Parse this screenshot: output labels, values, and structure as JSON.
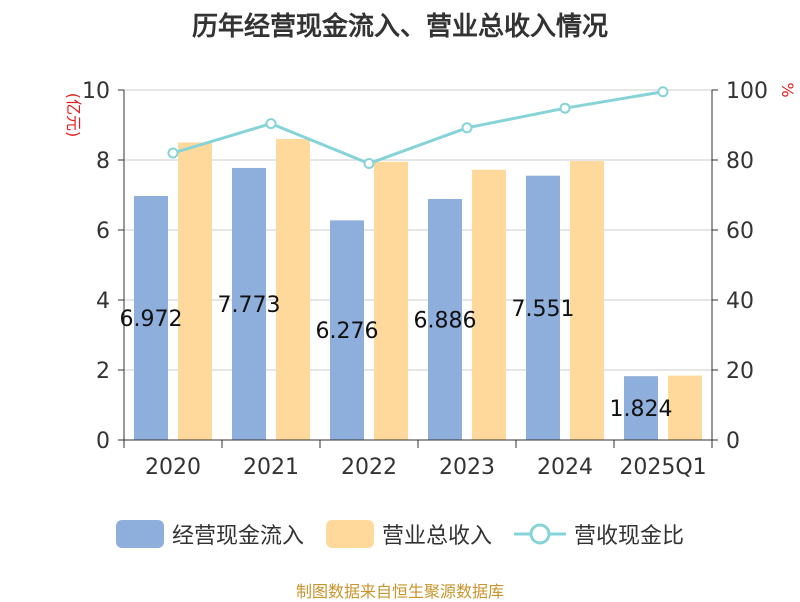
{
  "chart_data": {
    "type": "bar",
    "title": "历年经营现金流入、营业总收入情况",
    "categories": [
      "2020",
      "2021",
      "2022",
      "2023",
      "2024",
      "2025Q1"
    ],
    "series": [
      {
        "name": "经营现金流入",
        "type": "bar",
        "axis": "left",
        "color": "#8eaedb",
        "values": [
          6.972,
          7.773,
          6.276,
          6.886,
          7.551,
          1.824
        ]
      },
      {
        "name": "营业总收入",
        "type": "bar",
        "axis": "left",
        "color": "#ffd99b",
        "values": [
          8.5,
          8.6,
          7.95,
          7.72,
          7.97,
          1.84
        ]
      },
      {
        "name": "营收现金比",
        "type": "line",
        "axis": "right",
        "color": "#86d3d8",
        "values": [
          82.0,
          90.4,
          79.0,
          89.2,
          94.8,
          99.5
        ]
      }
    ],
    "data_labels": [
      "6.972",
      "7.773",
      "6.276",
      "6.886",
      "7.551",
      "1.824"
    ],
    "y_left": {
      "label": "(亿元)",
      "ylim": [
        0,
        10
      ],
      "ticks": [
        "0",
        "2",
        "4",
        "6",
        "8",
        "10"
      ]
    },
    "y_right": {
      "label": "%",
      "ylim": [
        0,
        100
      ],
      "ticks": [
        "0",
        "20",
        "40",
        "60",
        "80",
        "100"
      ]
    },
    "grid": true,
    "legend_position": "bottom"
  },
  "source": "制图数据来自恒生聚源数据库"
}
